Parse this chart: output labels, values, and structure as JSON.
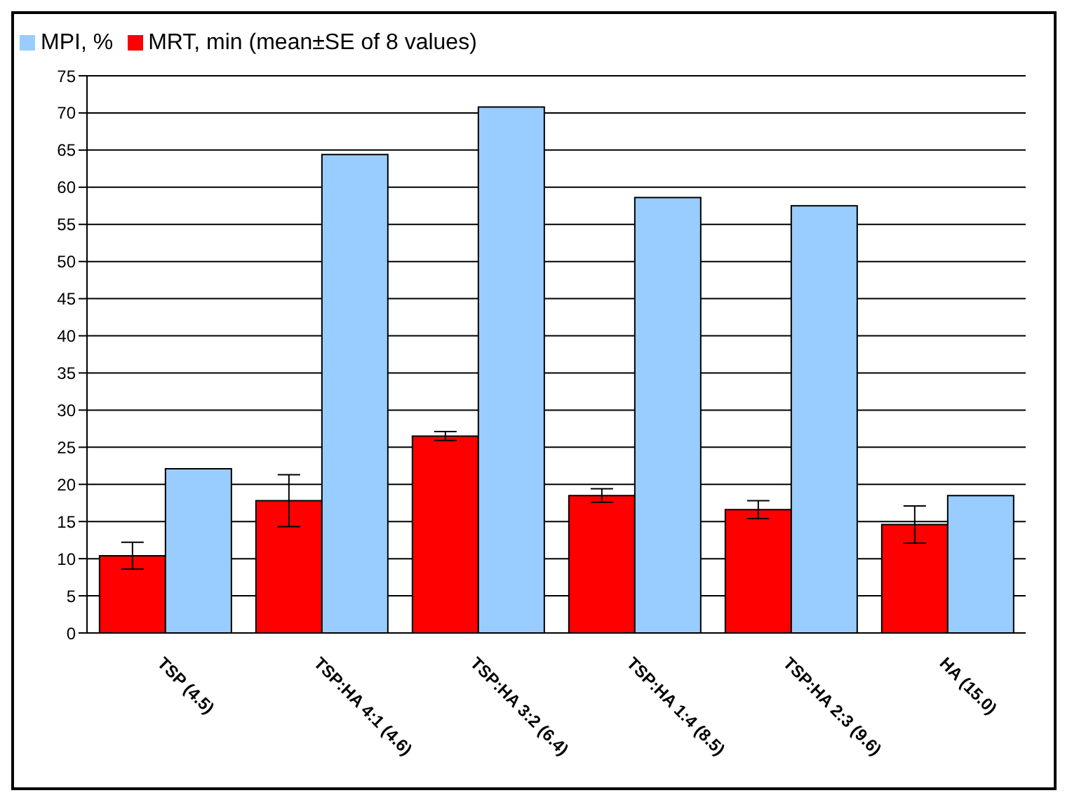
{
  "chart_data": {
    "type": "bar",
    "categories": [
      "TSP (4.5)",
      "TSP:HA 4:1 (4.6)",
      "TSP:HA 3:2 (6.4)",
      "TSP:HA 1:4 (8.5)",
      "TSP:HA 2:3 (9.6)",
      "HA (15.0)"
    ],
    "series": [
      {
        "name": "MRT, min (mean±SE of 8 values)",
        "color": "#ff0000",
        "values": [
          10.4,
          17.8,
          26.5,
          18.5,
          16.6,
          14.6
        ],
        "errors": [
          1.8,
          3.5,
          0.6,
          0.9,
          1.2,
          2.5
        ]
      },
      {
        "name": "MPI, %",
        "color": "#99ccff",
        "values": [
          22.1,
          64.4,
          70.8,
          58.6,
          57.5,
          18.5
        ]
      }
    ],
    "ylim": [
      0,
      75
    ],
    "yticks": [
      0,
      5,
      10,
      15,
      20,
      25,
      30,
      35,
      40,
      45,
      50,
      55,
      60,
      65,
      70,
      75
    ],
    "grid": "y",
    "legend": "top left"
  }
}
